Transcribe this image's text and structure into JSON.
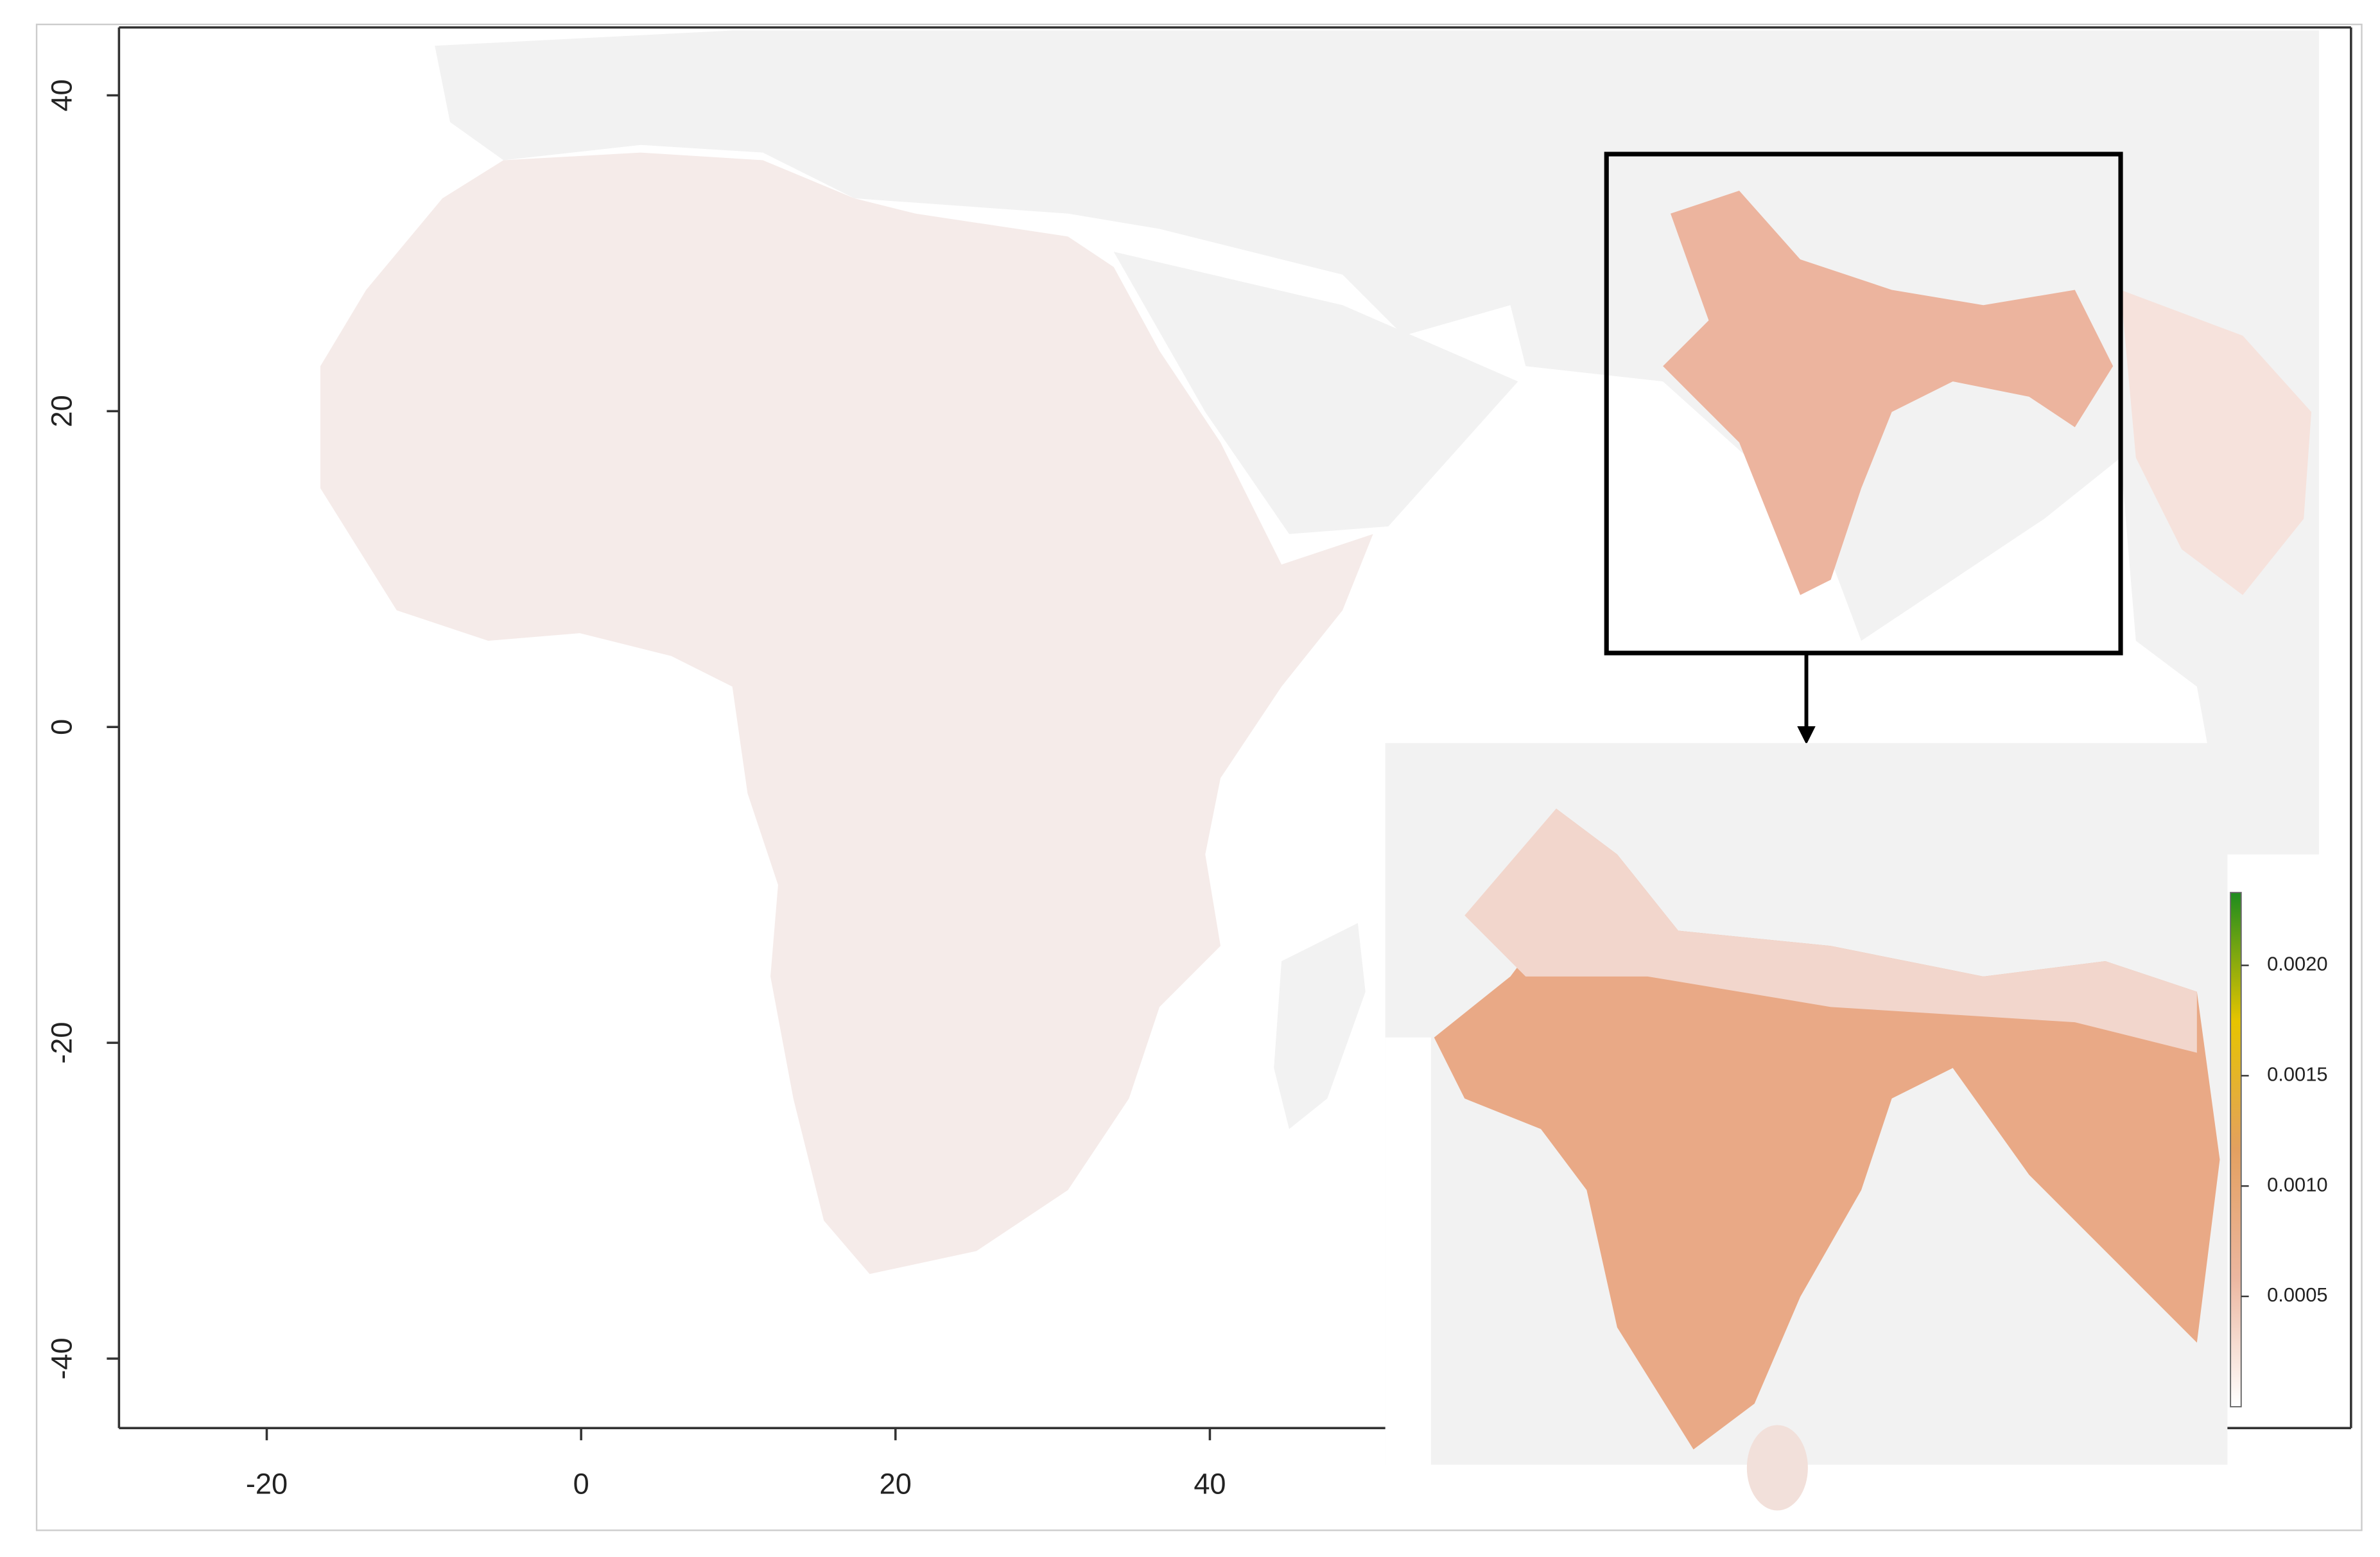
{
  "chart_data": {
    "type": "map",
    "xlim": [
      -29.4,
      112.6
    ],
    "ylim": [
      -44.4,
      44.3
    ],
    "xticks": [
      -20,
      0,
      20,
      40
    ],
    "yticks": [
      -40,
      -20,
      0,
      20,
      40
    ],
    "colorbar": {
      "lim": [
        0,
        0.00233
      ],
      "ticks": [
        0.0005,
        {
          "value": 0.001,
          "label": "0.0010"
        },
        {
          "value": 0.0015,
          "label": "0.0015"
        },
        {
          "value": 0.002,
          "label": "0.0020"
        }
      ],
      "colors": [
        "#ffffff",
        "#ecb7a0",
        "#e3a060",
        "#e6c400",
        "#1e8c1e"
      ]
    }
  }
}
